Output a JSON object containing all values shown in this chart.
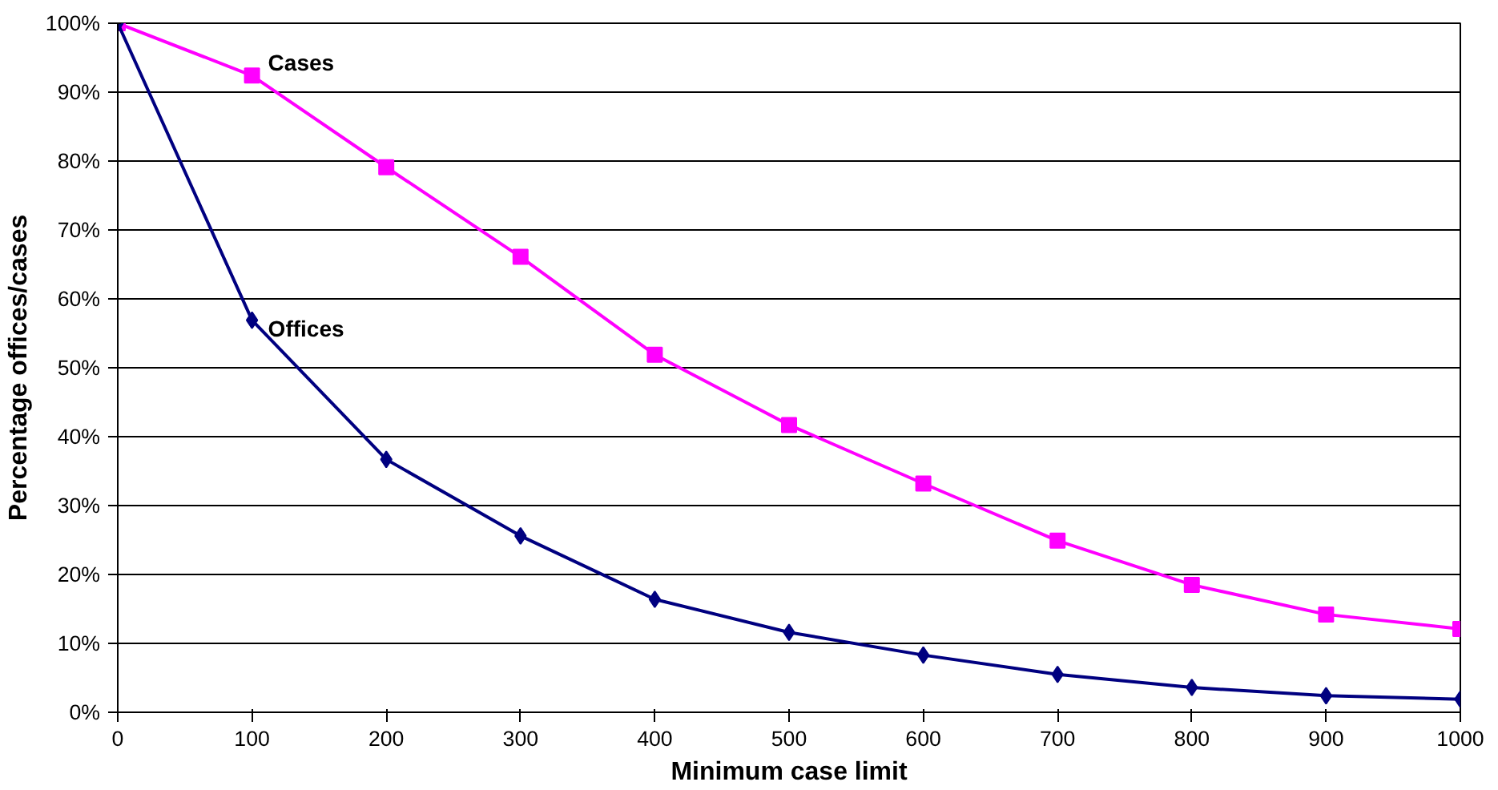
{
  "chart_data": {
    "type": "line",
    "xlabel": "Minimum case limit",
    "ylabel": "Percentage offices/cases",
    "x": [
      0,
      100,
      200,
      300,
      400,
      500,
      600,
      700,
      800,
      900,
      1000
    ],
    "series": [
      {
        "name": "Cases",
        "color": "#ff00ff",
        "marker": "square",
        "values": [
          100,
          92.4,
          79.1,
          66.1,
          51.9,
          41.7,
          33.2,
          24.9,
          18.5,
          14.2,
          12.1
        ]
      },
      {
        "name": "Offices",
        "color": "#000080",
        "marker": "diamond",
        "values": [
          100,
          56.9,
          36.7,
          25.6,
          16.4,
          11.6,
          8.3,
          5.5,
          3.6,
          2.4,
          1.9
        ]
      }
    ],
    "xlim": [
      0,
      1000
    ],
    "ylim": [
      0,
      100
    ],
    "xticks": [
      0,
      100,
      200,
      300,
      400,
      500,
      600,
      700,
      800,
      900,
      1000
    ],
    "yticks": [
      {
        "value": 0,
        "label": "0%"
      },
      {
        "value": 10,
        "label": "10%"
      },
      {
        "value": 20,
        "label": "20%"
      },
      {
        "value": 30,
        "label": "30%"
      },
      {
        "value": 40,
        "label": "40%"
      },
      {
        "value": 50,
        "label": "50%"
      },
      {
        "value": 60,
        "label": "60%"
      },
      {
        "value": 70,
        "label": "70%"
      },
      {
        "value": 80,
        "label": "80%"
      },
      {
        "value": 90,
        "label": "90%"
      },
      {
        "value": 100,
        "label": "100%"
      }
    ],
    "grid": "y",
    "legend": false,
    "line_style": "solid"
  }
}
